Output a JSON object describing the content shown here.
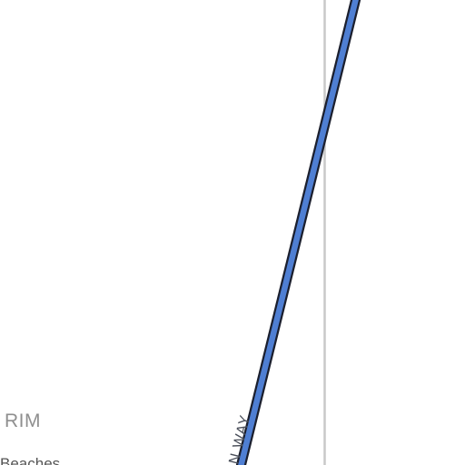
{
  "map": {
    "colors": {
      "background": "#ffffff",
      "boundary_line": "#c8c8c8",
      "road_fill": "#4f7fd3",
      "road_casing": "#1b1f2e"
    },
    "labels": {
      "area": "RIM",
      "place": "Beaches",
      "road": "N WAY"
    }
  }
}
